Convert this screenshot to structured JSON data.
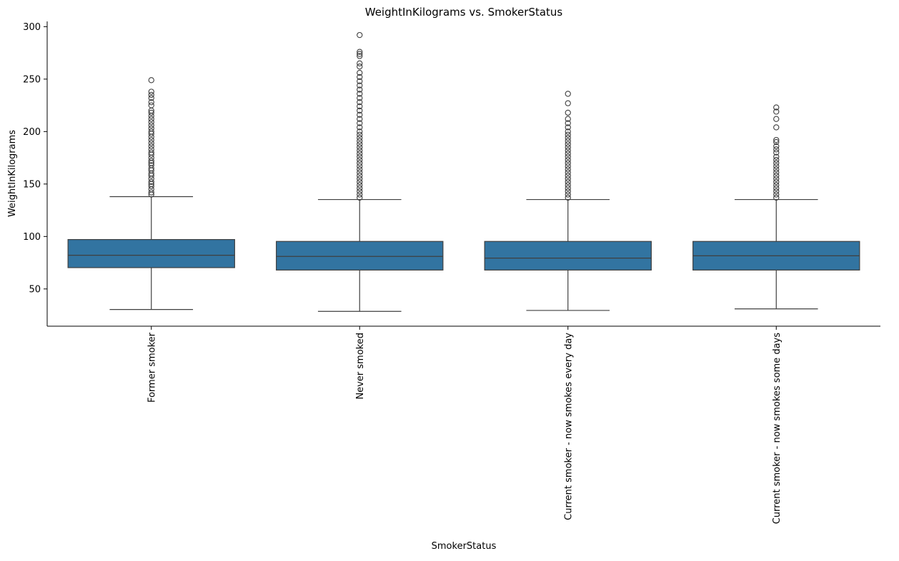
{
  "chart_data": {
    "type": "box",
    "title": "WeightInKilograms vs. SmokerStatus",
    "xlabel": "SmokerStatus",
    "ylabel": "WeightInKilograms",
    "ylim": [
      14.5,
      305
    ],
    "yticks": [
      50,
      100,
      150,
      200,
      250,
      300
    ],
    "grid": false,
    "colors": {
      "box_fill": "#3274a1",
      "box_edge": "#3f3f3f",
      "outlier_edge": "#3f3f3f"
    },
    "categories": [
      "Former smoker",
      "Never smoked",
      "Current smoker - now smokes every day",
      "Current smoker - now smokes some days"
    ],
    "boxes": [
      {
        "category": "Former smoker",
        "whisker_low": 30.4,
        "q1": 70.3,
        "median": 82.1,
        "q3": 97.1,
        "whisker_high": 138,
        "outliers": [
          140,
          142,
          145,
          148,
          150,
          152,
          155,
          158,
          160,
          163,
          165,
          168,
          170,
          172,
          175,
          178,
          180,
          183,
          186,
          189,
          192,
          195,
          198,
          200,
          203,
          206,
          209,
          212,
          215,
          218,
          220,
          225,
          228,
          232,
          235,
          238,
          249
        ]
      },
      {
        "category": "Never smoked",
        "whisker_low": 28.6,
        "q1": 68,
        "median": 81,
        "q3": 95.3,
        "whisker_high": 135.2,
        "outliers": [
          137,
          140,
          143,
          146,
          149,
          152,
          155,
          158,
          161,
          164,
          167,
          170,
          173,
          176,
          179,
          182,
          185,
          188,
          191,
          194,
          197,
          200,
          204,
          208,
          212,
          216,
          220,
          224,
          228,
          232,
          236,
          240,
          244,
          248,
          252,
          256,
          262,
          265,
          272,
          274,
          276,
          292
        ]
      },
      {
        "category": "Current smoker - now smokes every day",
        "whisker_low": 29.5,
        "q1": 68,
        "median": 79.4,
        "q3": 95.3,
        "whisker_high": 135.2,
        "outliers": [
          137,
          140,
          143,
          146,
          149,
          152,
          155,
          158,
          161,
          164,
          167,
          170,
          173,
          176,
          179,
          182,
          185,
          188,
          191,
          194,
          197,
          200,
          204,
          208,
          212,
          218,
          227,
          236
        ]
      },
      {
        "category": "Current smoker - now smokes some days",
        "whisker_low": 31,
        "q1": 68,
        "median": 81.6,
        "q3": 95.3,
        "whisker_high": 135.2,
        "outliers": [
          137,
          140,
          143,
          146,
          149,
          152,
          155,
          158,
          161,
          164,
          167,
          170,
          173,
          176,
          180,
          183,
          186,
          190,
          192,
          204,
          212,
          219,
          223
        ]
      }
    ]
  }
}
